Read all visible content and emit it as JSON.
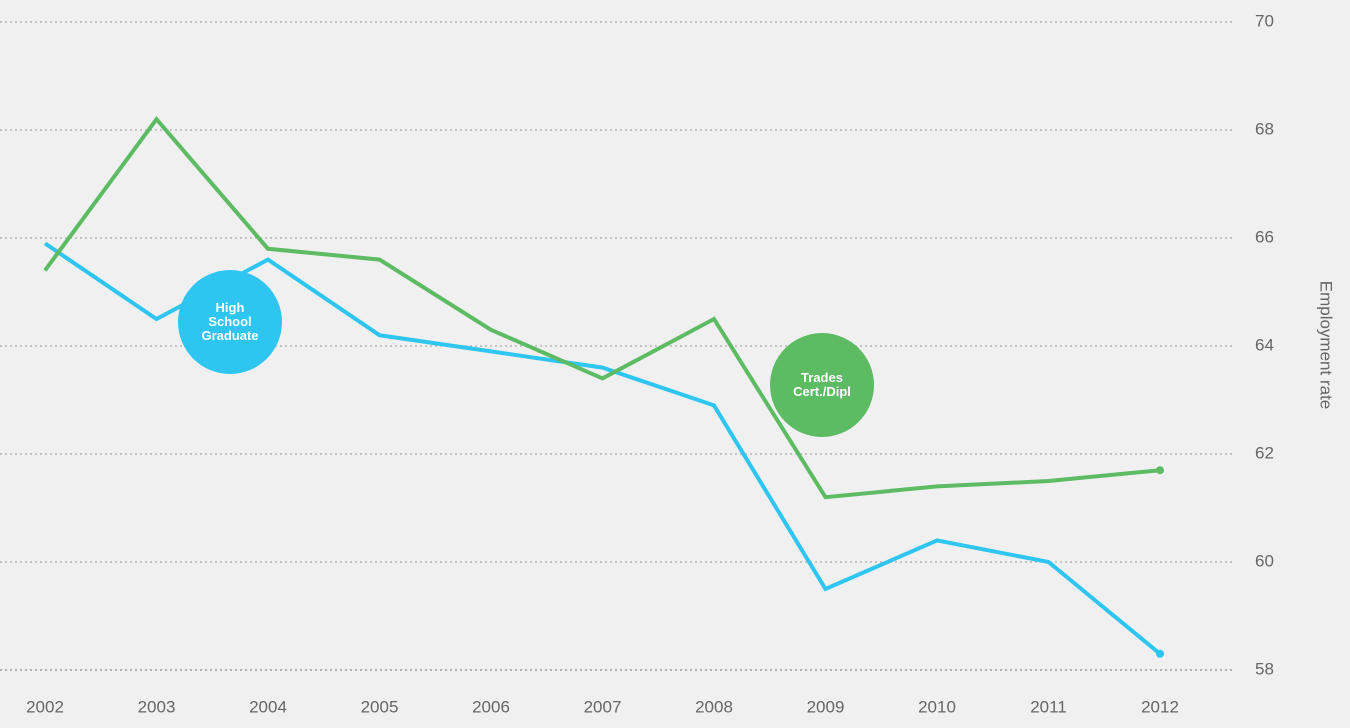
{
  "chart_data": {
    "type": "line",
    "y_axis_label": "Employment rate",
    "categories": [
      "2002",
      "2003",
      "2004",
      "2005",
      "2006",
      "2007",
      "2008",
      "2009",
      "2010",
      "2011",
      "2012"
    ],
    "series": [
      {
        "name": "High School Graduate",
        "color": "#2ec5f1",
        "values": [
          65.9,
          64.5,
          65.6,
          64.2,
          63.9,
          63.6,
          62.9,
          59.5,
          60.4,
          60.0,
          58.3
        ]
      },
      {
        "name": "Trades Cert./Dipl",
        "color": "#5cbb63",
        "values": [
          65.4,
          68.2,
          65.8,
          65.6,
          64.3,
          63.4,
          64.5,
          61.2,
          61.4,
          61.5,
          61.7
        ]
      }
    ],
    "ylim": [
      58,
      70
    ],
    "yticks": [
      58,
      60,
      62,
      64,
      66,
      68,
      70
    ],
    "grid": true
  }
}
